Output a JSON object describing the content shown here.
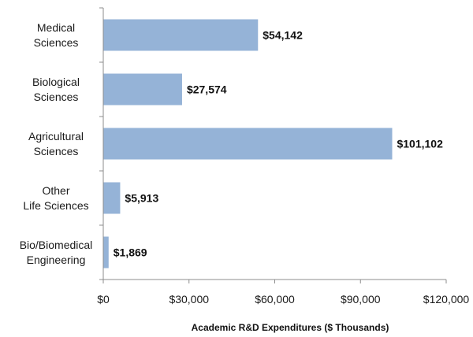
{
  "chart_data": {
    "type": "bar",
    "orientation": "horizontal",
    "categories": [
      [
        "Medical",
        "Sciences"
      ],
      [
        "Biological",
        "Sciences"
      ],
      [
        "Agricultural",
        "Sciences"
      ],
      [
        "Other",
        "Life Sciences"
      ],
      [
        "Bio/Biomedical",
        "Engineering"
      ]
    ],
    "values": [
      54142,
      27574,
      101102,
      5913,
      1869
    ],
    "data_labels": [
      "$54,142",
      "$27,574",
      "$101,102",
      "$5,913",
      "$1,869"
    ],
    "xlabel": "Academic R&D Expenditures ($ Thousands)",
    "ylabel": "",
    "xlim": [
      0,
      120000
    ],
    "xticks": [
      0,
      30000,
      60000,
      90000,
      120000
    ],
    "xtick_labels": [
      "$0",
      "$30,000",
      "$60,000",
      "$90,000",
      "$120,000"
    ],
    "grid": false,
    "legend": "none",
    "bar_color": "#95b3d7"
  }
}
